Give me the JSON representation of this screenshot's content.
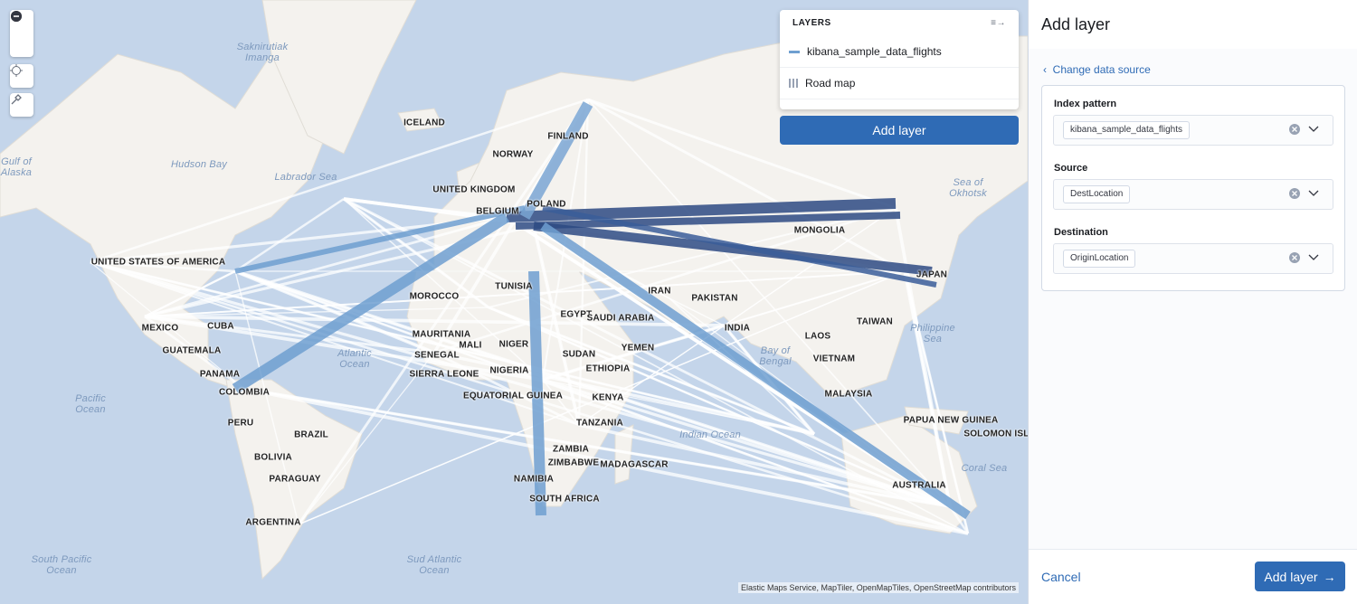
{
  "map": {
    "labels": [
      "Saknirutiak Imanga",
      "Hudson Bay",
      "Labrador Sea",
      "Gulf of Alaska",
      "ICELAND",
      "FINLAND",
      "NORWAY",
      "UNITED KINGDOM",
      "POLAND",
      "BELGIUM",
      "UNITED STATES OF AMERICA",
      "MONGOLIA",
      "JAPAN",
      "Sea of Okhotsk",
      "MEXICO",
      "CUBA",
      "GUATEMALA",
      "PANAMA",
      "COLOMBIA",
      "Pacific Ocean",
      "PERU",
      "BRAZIL",
      "BOLIVIA",
      "PARAGUAY",
      "ARGENTINA",
      "South Pacific Ocean",
      "Sud Atlantic Ocean",
      "Atlantic Ocean",
      "MOROCCO",
      "TUNISIA",
      "MAURITANIA",
      "MALI",
      "NIGER",
      "SENEGAL",
      "SIERRA LEONE",
      "NIGERIA",
      "EQUATORIAL GUINEA",
      "SUDAN",
      "ETHIOPIA",
      "KENYA",
      "TANZANIA",
      "ZAMBIA",
      "ZIMBABWE",
      "NAMIBIA",
      "SOUTH AFRICA",
      "MADAGASCAR",
      "EGYPT",
      "SAUDI ARABIA",
      "YEMEN",
      "IRAN",
      "PAKISTAN",
      "INDIA",
      "Bay of Bengal",
      "Indian Ocean",
      "TAIWAN",
      "LAOS",
      "VIETNAM",
      "Philippine Sea",
      "MALAYSIA",
      "PAPUA NEW GUINEA",
      "SOLOMON ISLANDS",
      "Coral Sea",
      "AUSTRALIA"
    ],
    "attribution": "Elastic Maps Service, MapTiler, OpenMapTiles, OpenStreetMap contributors"
  },
  "layers_panel": {
    "title": "LAYERS",
    "layers": [
      {
        "name": "kibana_sample_data_flights"
      },
      {
        "name": "Road map"
      }
    ],
    "add_button": "Add layer"
  },
  "flyout": {
    "title": "Add layer",
    "back_link": "Change data source",
    "fields": [
      {
        "label": "Index pattern",
        "value": "kibana_sample_data_flights"
      },
      {
        "label": "Source",
        "value": "DestLocation"
      },
      {
        "label": "Destination",
        "value": "OriginLocation"
      }
    ],
    "cancel": "Cancel",
    "submit": "Add layer"
  }
}
